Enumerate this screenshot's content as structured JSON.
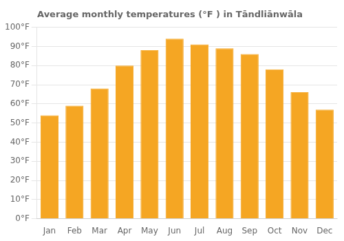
{
  "chart_data": {
    "type": "bar",
    "title": "Average monthly temperatures (°F ) in Tāndliānwāla",
    "categories": [
      "Jan",
      "Feb",
      "Mar",
      "Apr",
      "May",
      "Jun",
      "Jul",
      "Aug",
      "Sep",
      "Oct",
      "Nov",
      "Dec"
    ],
    "values": [
      54,
      59,
      68,
      80,
      88,
      94,
      91,
      89,
      86,
      78,
      66,
      57
    ],
    "color": "#F5A623",
    "ylim": [
      0,
      100
    ],
    "yticks": [
      {
        "value": 0,
        "label": "0°F"
      },
      {
        "value": 10,
        "label": "10°F"
      },
      {
        "value": 20,
        "label": "20°F"
      },
      {
        "value": 30,
        "label": "30°F"
      },
      {
        "value": 40,
        "label": "40°F"
      },
      {
        "value": 50,
        "label": "50°F"
      },
      {
        "value": 60,
        "label": "60°F"
      },
      {
        "value": 70,
        "label": "70°F"
      },
      {
        "value": 80,
        "label": "80°F"
      },
      {
        "value": 90,
        "label": "90°F"
      },
      {
        "value": 100,
        "label": "100°F"
      }
    ],
    "grid": true
  }
}
